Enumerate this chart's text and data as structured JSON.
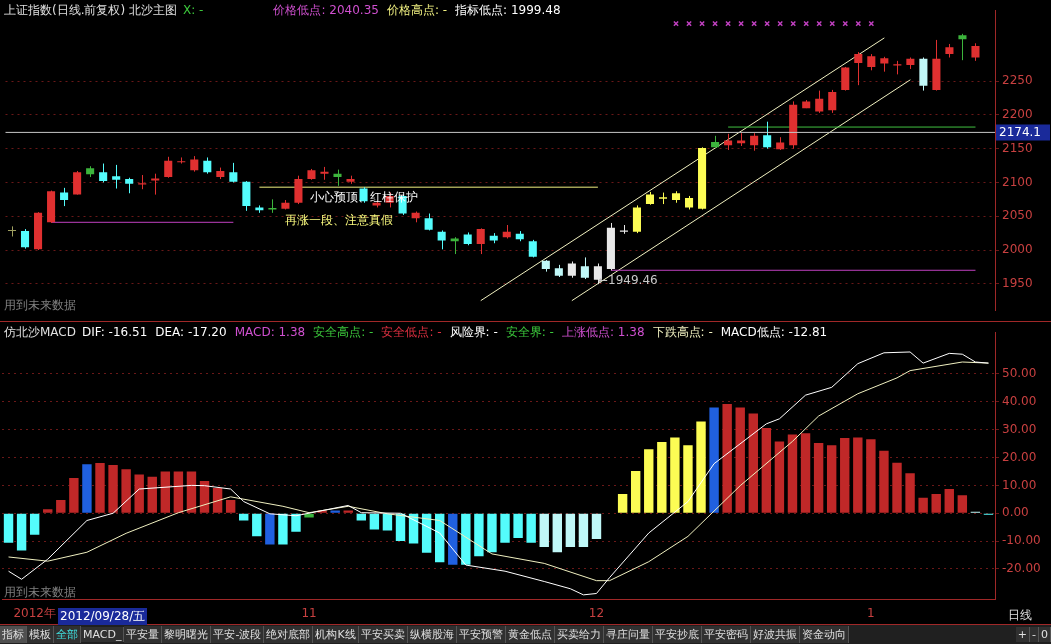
{
  "chart_data": [
    {
      "type": "candlestick",
      "title": "上证指数(日线.前复权) 北沙主图",
      "annotations": [
        "X: -",
        "价格低点: 2040.35",
        "价格高点: -",
        "指标低点: 1999.48",
        "小心预顶、红柱保护",
        "再涨一段、注意真假",
        "←1949.46",
        "用到未来数据"
      ],
      "categories": [
        null,
        null,
        null,
        null,
        null,
        null,
        null,
        null,
        null,
        null,
        null,
        null,
        null,
        null,
        null,
        null,
        null,
        null,
        null,
        null,
        null,
        null,
        null,
        null,
        null,
        null,
        null,
        null,
        null,
        null,
        null,
        null,
        null,
        null,
        null,
        null,
        null,
        null,
        null,
        null,
        null,
        null,
        null,
        null,
        null,
        null,
        null,
        null,
        null,
        null,
        null,
        null,
        null,
        null,
        null,
        null,
        null,
        null,
        null,
        null,
        null,
        null,
        null,
        null,
        null,
        null,
        null,
        null,
        null,
        null,
        null,
        null,
        null,
        null,
        null,
        null
      ],
      "ohlc": [
        [
          2028,
          2035,
          2020,
          2029
        ],
        [
          2028,
          2031,
          2002,
          2004
        ],
        [
          2001,
          2056,
          2000,
          2055
        ],
        [
          2041,
          2088,
          2040,
          2087
        ],
        [
          2085,
          2092,
          2065,
          2074
        ],
        [
          2082,
          2117,
          2082,
          2115
        ],
        [
          2121,
          2124,
          2108,
          2112
        ],
        [
          2115,
          2128,
          2100,
          2102
        ],
        [
          2109,
          2126,
          2091,
          2104
        ],
        [
          2105,
          2107,
          2084,
          2098
        ],
        [
          2097,
          2111,
          2090,
          2099
        ],
        [
          2103,
          2113,
          2082,
          2106
        ],
        [
          2108,
          2138,
          2107,
          2132
        ],
        [
          2130,
          2137,
          2128,
          2131
        ],
        [
          2118,
          2139,
          2116,
          2134
        ],
        [
          2132,
          2137,
          2113,
          2115
        ],
        [
          2108,
          2122,
          2105,
          2117
        ],
        [
          2115,
          2129,
          2100,
          2101
        ],
        [
          2101,
          2102,
          2058,
          2065
        ],
        [
          2063,
          2066,
          2055,
          2059
        ],
        [
          2062,
          2075,
          2055,
          2060
        ],
        [
          2061,
          2074,
          2060,
          2070
        ],
        [
          2070,
          2110,
          2068,
          2105
        ],
        [
          2105,
          2120,
          2104,
          2118
        ],
        [
          2113,
          2123,
          2104,
          2116
        ],
        [
          2113,
          2119,
          2095,
          2108
        ],
        [
          2101,
          2110,
          2098,
          2105
        ],
        [
          2091,
          2093,
          2070,
          2072
        ],
        [
          2066,
          2072,
          2063,
          2070
        ],
        [
          2070,
          2085,
          2063,
          2080
        ],
        [
          2080,
          2082,
          2052,
          2054
        ],
        [
          2047,
          2057,
          2041,
          2055
        ],
        [
          2047,
          2054,
          2029,
          2030
        ],
        [
          2027,
          2029,
          2001,
          2014
        ],
        [
          2017,
          2019,
          1994,
          2013
        ],
        [
          2023,
          2026,
          2007,
          2009
        ],
        [
          2009,
          2032,
          1994,
          2031
        ],
        [
          2021,
          2025,
          2010,
          2014
        ],
        [
          2019,
          2037,
          2017,
          2027
        ],
        [
          2024,
          2028,
          2013,
          2016
        ],
        [
          2013,
          2015,
          1989,
          1990
        ],
        [
          1984,
          1985,
          1968,
          1972
        ],
        [
          1973,
          1978,
          1960,
          1962
        ],
        [
          1962,
          1983,
          1959,
          1980
        ],
        [
          1976,
          1989,
          1957,
          1959
        ],
        [
          1956,
          1980,
          1949.46,
          1976
        ],
        [
          1972,
          2040,
          1970,
          2033
        ],
        [
          2027,
          2037,
          2024,
          2029
        ],
        [
          2027,
          2066,
          2025,
          2063
        ],
        [
          2068,
          2086,
          2067,
          2082
        ],
        [
          2076,
          2085,
          2068,
          2078
        ],
        [
          2074,
          2087,
          2070,
          2084
        ],
        [
          2063,
          2080,
          2060,
          2077
        ],
        [
          2061,
          2152,
          2060,
          2151
        ],
        [
          2160,
          2169,
          2151,
          2152
        ],
        [
          2155,
          2172,
          2148,
          2162
        ],
        [
          2158,
          2173,
          2154,
          2162
        ],
        [
          2155,
          2173,
          2147,
          2169
        ],
        [
          2170,
          2190,
          2150,
          2152
        ],
        [
          2149,
          2167,
          2148,
          2159
        ],
        [
          2155,
          2220,
          2150,
          2215
        ],
        [
          2210,
          2222,
          2210,
          2220
        ],
        [
          2205,
          2236,
          2203,
          2224
        ],
        [
          2207,
          2237,
          2203,
          2234
        ],
        [
          2237,
          2271,
          2236,
          2270
        ],
        [
          2277,
          2293,
          2244,
          2290
        ],
        [
          2271,
          2290,
          2266,
          2287
        ],
        [
          2276,
          2286,
          2264,
          2284
        ],
        [
          2273,
          2280,
          2260,
          2275
        ],
        [
          2274,
          2285,
          2268,
          2283
        ],
        [
          2283,
          2285,
          2236,
          2243
        ],
        [
          2237,
          2311,
          2236,
          2283
        ],
        [
          2290,
          2305,
          2285,
          2300
        ],
        [
          2318,
          2320,
          2281,
          2312
        ],
        [
          2285,
          2306,
          2280,
          2302
        ],
        null
      ],
      "colors": [
        "#a0a060",
        "#54fcfc",
        "#e03030",
        "#e03030",
        "#54fcfc",
        "#e03030",
        "#3cb43c",
        "#54fcfc",
        "#54fcfc",
        "#54fcfc",
        "#e03030",
        "#e03030",
        "#e03030",
        "#e03030",
        "#e03030",
        "#54fcfc",
        "#e03030",
        "#54fcfc",
        "#54fcfc",
        "#54fcfc",
        "#3cb43c",
        "#e03030",
        "#e03030",
        "#e03030",
        "#e03030",
        "#3cb43c",
        "#e03030",
        "#54fcfc",
        "#e03030",
        "#e03030",
        "#54fcfc",
        "#e03030",
        "#54fcfc",
        "#54fcfc",
        "#3cb43c",
        "#54fcfc",
        "#e03030",
        "#54fcfc",
        "#e03030",
        "#54fcfc",
        "#54fcfc",
        "#c0f8f8",
        "#c0f8f8",
        "#e8e8e8",
        "#c0f8f8",
        "#e8e8e8",
        "#e8e8e8",
        "#e8e8e8",
        "#fcfc54",
        "#fcfc54",
        "#fcfc54",
        "#fcfc54",
        "#fcfc54",
        "#fcfc54",
        "#3cb43c",
        "#e03030",
        "#e03030",
        "#e03030",
        "#54fcfc",
        "#e03030",
        "#e03030",
        "#e03030",
        "#e03030",
        "#e03030",
        "#e03030",
        "#e03030",
        "#e03030",
        "#e03030",
        "#e03030",
        "#e03030",
        "#c0f8f8",
        "#e03030",
        "#e03030",
        "#3cb43c",
        "#e03030",
        "#e03030"
      ],
      "series": [
        {
          "type": "line",
          "color": "#f0f080",
          "values": [
            null,
            null,
            null,
            null,
            null,
            null,
            null,
            null,
            null,
            null,
            null,
            null,
            null,
            null,
            null,
            null,
            null,
            null,
            null,
            2093,
            null,
            null,
            null,
            null,
            null,
            null,
            null,
            null,
            null,
            null,
            null,
            null,
            null,
            null,
            null,
            null,
            null,
            null,
            null,
            null,
            null,
            null,
            null,
            null,
            null,
            2093,
            null,
            null,
            null,
            null,
            null,
            null,
            null,
            null,
            null,
            null,
            null,
            null,
            null,
            null,
            null,
            null,
            null,
            null,
            null,
            null,
            null,
            null,
            null,
            null,
            null,
            null,
            null,
            null,
            null,
            null
          ]
        },
        {
          "type": "line",
          "color": "#c040c0",
          "values": [
            null,
            null,
            null,
            2041,
            null,
            null,
            null,
            null,
            null,
            null,
            null,
            null,
            null,
            null,
            null,
            null,
            null,
            2041,
            null,
            null,
            null,
            null,
            null,
            null,
            null,
            null,
            null,
            null,
            null,
            null,
            null,
            null,
            null,
            null,
            null,
            null,
            null,
            null,
            null,
            null,
            null,
            null,
            null,
            null,
            null,
            null,
            null,
            null,
            null,
            null,
            null,
            null,
            null,
            null,
            null,
            null,
            null,
            null,
            null,
            null,
            null,
            null,
            null,
            null,
            null,
            null,
            null,
            null,
            null,
            null,
            null,
            null,
            null,
            null,
            null,
            null
          ]
        },
        {
          "type": "line",
          "color": "#c040c0",
          "values": [
            null,
            null,
            null,
            null,
            null,
            null,
            null,
            null,
            null,
            null,
            null,
            null,
            null,
            null,
            null,
            null,
            null,
            null,
            null,
            null,
            null,
            null,
            null,
            null,
            null,
            null,
            null,
            null,
            null,
            null,
            null,
            null,
            null,
            null,
            null,
            null,
            null,
            null,
            null,
            null,
            null,
            null,
            null,
            null,
            null,
            null,
            1970,
            null,
            null,
            null,
            null,
            null,
            null,
            null,
            null,
            null,
            null,
            null,
            null,
            null,
            null,
            null,
            null,
            null,
            null,
            null,
            null,
            null,
            null,
            null,
            null,
            null,
            null,
            null,
            1970,
            null
          ]
        },
        {
          "type": "line",
          "color": "#40c040",
          "values": [
            null,
            null,
            null,
            null,
            null,
            null,
            null,
            null,
            null,
            null,
            null,
            null,
            null,
            null,
            null,
            null,
            null,
            null,
            null,
            null,
            null,
            null,
            null,
            null,
            null,
            null,
            null,
            null,
            null,
            null,
            null,
            null,
            null,
            null,
            null,
            null,
            null,
            null,
            null,
            null,
            null,
            null,
            null,
            null,
            null,
            null,
            null,
            null,
            null,
            null,
            null,
            null,
            null,
            null,
            null,
            2182,
            null,
            null,
            null,
            null,
            null,
            null,
            null,
            null,
            null,
            null,
            null,
            null,
            null,
            null,
            null,
            null,
            null,
            null,
            2182,
            null
          ]
        },
        {
          "type": "line",
          "color": "#f0f0c0",
          "values": [
            null,
            null,
            null,
            null,
            null,
            null,
            null,
            null,
            null,
            null,
            null,
            null,
            null,
            null,
            null,
            null,
            null,
            null,
            null,
            null,
            null,
            null,
            null,
            null,
            null,
            null,
            null,
            null,
            null,
            null,
            null,
            null,
            null,
            null,
            null,
            null,
            1925,
            null,
            null,
            null,
            null,
            null,
            null,
            null,
            null,
            null,
            null,
            null,
            null,
            null,
            null,
            null,
            null,
            null,
            null,
            null,
            null,
            null,
            null,
            null,
            null,
            null,
            null,
            null,
            null,
            null,
            null,
            2314,
            null,
            null,
            null,
            null,
            null,
            null,
            null,
            null
          ]
        },
        {
          "type": "line",
          "color": "#f0f0c0",
          "values": [
            null,
            null,
            null,
            null,
            null,
            null,
            null,
            null,
            null,
            null,
            null,
            null,
            null,
            null,
            null,
            null,
            null,
            null,
            null,
            null,
            null,
            null,
            null,
            null,
            null,
            null,
            null,
            null,
            null,
            null,
            null,
            null,
            null,
            null,
            null,
            null,
            null,
            null,
            null,
            null,
            null,
            null,
            null,
            1925,
            null,
            null,
            null,
            null,
            null,
            null,
            null,
            null,
            null,
            null,
            null,
            null,
            null,
            null,
            null,
            null,
            null,
            null,
            null,
            null,
            null,
            null,
            null,
            null,
            null,
            2252,
            null,
            null,
            null,
            null,
            null,
            null
          ]
        },
        {
          "type": "scatter",
          "color": "#c040c0",
          "marker": "cross",
          "values": [
            null,
            null,
            null,
            null,
            null,
            null,
            null,
            null,
            null,
            null,
            null,
            null,
            null,
            null,
            null,
            null,
            null,
            null,
            null,
            null,
            null,
            null,
            null,
            null,
            null,
            null,
            null,
            null,
            null,
            null,
            null,
            null,
            null,
            null,
            null,
            null,
            null,
            null,
            null,
            null,
            null,
            null,
            null,
            null,
            null,
            null,
            null,
            null,
            null,
            null,
            null,
            2335,
            2335,
            2335,
            2335,
            2335,
            2335,
            2335,
            2335,
            2335,
            2335,
            2335,
            2335,
            2335,
            2335,
            2335,
            2335,
            null,
            null,
            null,
            null,
            null,
            null,
            null,
            null,
            null
          ]
        }
      ],
      "ylim": [
        1910,
        2355
      ],
      "yticks": [
        1950,
        2000,
        2050,
        2100,
        2150,
        2200,
        2250
      ],
      "grid": "y",
      "tick_labels": "y",
      "ref_lines": [
        {
          "axis": "y",
          "value": 2174.1,
          "label": "2174.1",
          "color": "#c8c8c8"
        }
      ]
    },
    {
      "type": "bar",
      "title": "仿北沙MACD",
      "annotations": [
        "DIF: -16.51",
        "DEA: -17.20",
        "MACD: 1.38",
        "安全高点: -",
        "安全低点: -",
        "风险界: -",
        "安全界: -",
        "上涨低点: 1.38",
        "下跌高点: -",
        "MACD低点: -12.81",
        "用到未来数据",
        "2012/09/28/五",
        "日线"
      ],
      "categories": [
        null,
        null,
        "2012年",
        null,
        null,
        null,
        null,
        null,
        null,
        null,
        null,
        null,
        null,
        null,
        null,
        null,
        null,
        null,
        null,
        null,
        null,
        null,
        null,
        "11",
        null,
        null,
        null,
        null,
        null,
        null,
        null,
        null,
        null,
        null,
        null,
        null,
        null,
        null,
        null,
        null,
        null,
        null,
        null,
        null,
        null,
        "12",
        null,
        null,
        null,
        null,
        null,
        null,
        null,
        null,
        null,
        null,
        null,
        null,
        null,
        null,
        null,
        null,
        null,
        null,
        null,
        null,
        "1",
        null,
        null,
        null,
        null,
        null,
        null,
        null,
        null,
        null
      ],
      "series": [
        {
          "type": "bar",
          "values": [
            -10.6,
            -13.4,
            -7.7,
            1.4,
            4.8,
            12.7,
            17.6,
            18,
            17.3,
            15.8,
            13.9,
            13.1,
            15,
            15,
            15,
            11.6,
            9.1,
            4.8,
            -2.6,
            -8.3,
            -11.2,
            -11.2,
            -6.6,
            -1.5,
            1,
            1,
            1,
            -2.6,
            -5.8,
            -6.2,
            -10,
            -10.9,
            -14.2,
            -17.6,
            -18.5,
            -18.5,
            -15.4,
            -14,
            -10.6,
            -8.9,
            -10.6,
            -12.1,
            -14,
            -12.1,
            -12.1,
            -9.2,
            0,
            6.9,
            15.2,
            23,
            25.6,
            27.2,
            24.4,
            32.9,
            38,
            39.2,
            38,
            35.8,
            30.6,
            25.8,
            28.3,
            28.7,
            25.2,
            24.4,
            27,
            27.2,
            26.6,
            22.4,
            18.1,
            14.4,
            5.6,
            6.9,
            8.7,
            6.5,
            0.5,
            -0.5
          ],
          "colors": [
            "#54fcfc",
            "#54fcfc",
            "#54fcfc",
            "#c02828",
            "#c02828",
            "#c02828",
            "#2060e0",
            "#c02828",
            "#c02828",
            "#c02828",
            "#c02828",
            "#c02828",
            "#c02828",
            "#c02828",
            "#c02828",
            "#c02828",
            "#c02828",
            "#c02828",
            "#54fcfc",
            "#54fcfc",
            "#2060e0",
            "#54fcfc",
            "#54fcfc",
            "#3cb43c",
            "#c02828",
            "#2060e0",
            "#c02828",
            "#54fcfc",
            "#54fcfc",
            "#54fcfc",
            "#54fcfc",
            "#54fcfc",
            "#54fcfc",
            "#54fcfc",
            "#2060e0",
            "#54fcfc",
            "#54fcfc",
            "#54fcfc",
            "#54fcfc",
            "#54fcfc",
            "#54fcfc",
            "#c0f8f8",
            "#c0f8f8",
            "#c0f8f8",
            "#c0f8f8",
            "#c0f8f8",
            "#c02828",
            "#fcfc54",
            "#fcfc54",
            "#fcfc54",
            "#fcfc54",
            "#fcfc54",
            "#fcfc54",
            "#fcfc54",
            "#2060e0",
            "#c02828",
            "#c02828",
            "#c02828",
            "#c02828",
            "#c02828",
            "#c02828",
            "#c02828",
            "#c02828",
            "#c02828",
            "#c02828",
            "#c02828",
            "#c02828",
            "#c02828",
            "#c02828",
            "#c02828",
            "#c02828",
            "#c02828",
            "#c02828",
            "#c02828",
            "#c0f8f8",
            "#54fcfc"
          ]
        },
        {
          "type": "line",
          "color": "#ffffff",
          "values": [
            -20.8,
            -23.7,
            null,
            -16.5,
            null,
            null,
            -2.6,
            null,
            0,
            null,
            8.7,
            null,
            null,
            null,
            10,
            9.9,
            null,
            8.7,
            4.2,
            null,
            -0.2,
            null,
            -0.9,
            null,
            null,
            null,
            2.8,
            0.2,
            null,
            null,
            0,
            null,
            null,
            -7.1,
            null,
            -18.6,
            null,
            null,
            -20.8,
            null,
            null,
            -24.5,
            null,
            -27.1,
            -29.3,
            -28.8,
            -23.1,
            null,
            null,
            -7.1,
            null,
            null,
            4.2,
            null,
            17.8,
            null,
            null,
            null,
            32.1,
            33.9,
            null,
            42.4,
            null,
            45.2,
            null,
            53.7,
            null,
            57.6,
            null,
            57.9,
            53.9,
            null,
            57.4,
            57.1,
            54.3,
            53.9
          ]
        },
        {
          "type": "line",
          "color": "#f0f0c0",
          "values": [
            -15.7,
            null,
            null,
            -17.2,
            null,
            null,
            -14,
            null,
            null,
            -7.2,
            null,
            null,
            null,
            0.2,
            null,
            null,
            null,
            5.9,
            null,
            null,
            null,
            2.5,
            null,
            0.2,
            null,
            null,
            2.5,
            null,
            null,
            -0.2,
            null,
            null,
            null,
            -2.6,
            null,
            null,
            null,
            -14.6,
            null,
            null,
            null,
            -18,
            null,
            null,
            null,
            -24.2,
            -24.2,
            null,
            null,
            -17.4,
            null,
            null,
            -8.3,
            null,
            0.8,
            null,
            9.9,
            null,
            null,
            null,
            25.8,
            null,
            34.9,
            null,
            null,
            42.9,
            null,
            null,
            48.6,
            51.2,
            null,
            null,
            null,
            54.3,
            null,
            53.9
          ]
        }
      ],
      "ylim": [
        -31,
        65
      ],
      "yticks": [
        {
          "value": -20,
          "label": "-20.00"
        },
        {
          "value": -10,
          "label": "-10.00"
        },
        {
          "value": 0,
          "label": "0.00"
        },
        {
          "value": 10,
          "label": "10.00"
        },
        {
          "value": 20,
          "label": "20.00"
        },
        {
          "value": 30,
          "label": "30.00"
        },
        {
          "value": 40,
          "label": "40.00"
        },
        {
          "value": 50,
          "label": "50.00"
        }
      ],
      "grid": "y"
    },
    {
      "type": "other",
      "annotations": [
        "指标",
        "模板",
        "全部",
        "MACD_",
        "平安量",
        "黎明曙光",
        "平安-波段",
        "绝对底部",
        "机构K线",
        "平安买卖",
        "纵横股海",
        "平安预警",
        "黄金低点",
        "买卖给力",
        "寻庄问量",
        "平安抄底",
        "平安密码",
        "好波共振",
        "资金动向",
        "+",
        "-",
        "0"
      ]
    }
  ]
}
